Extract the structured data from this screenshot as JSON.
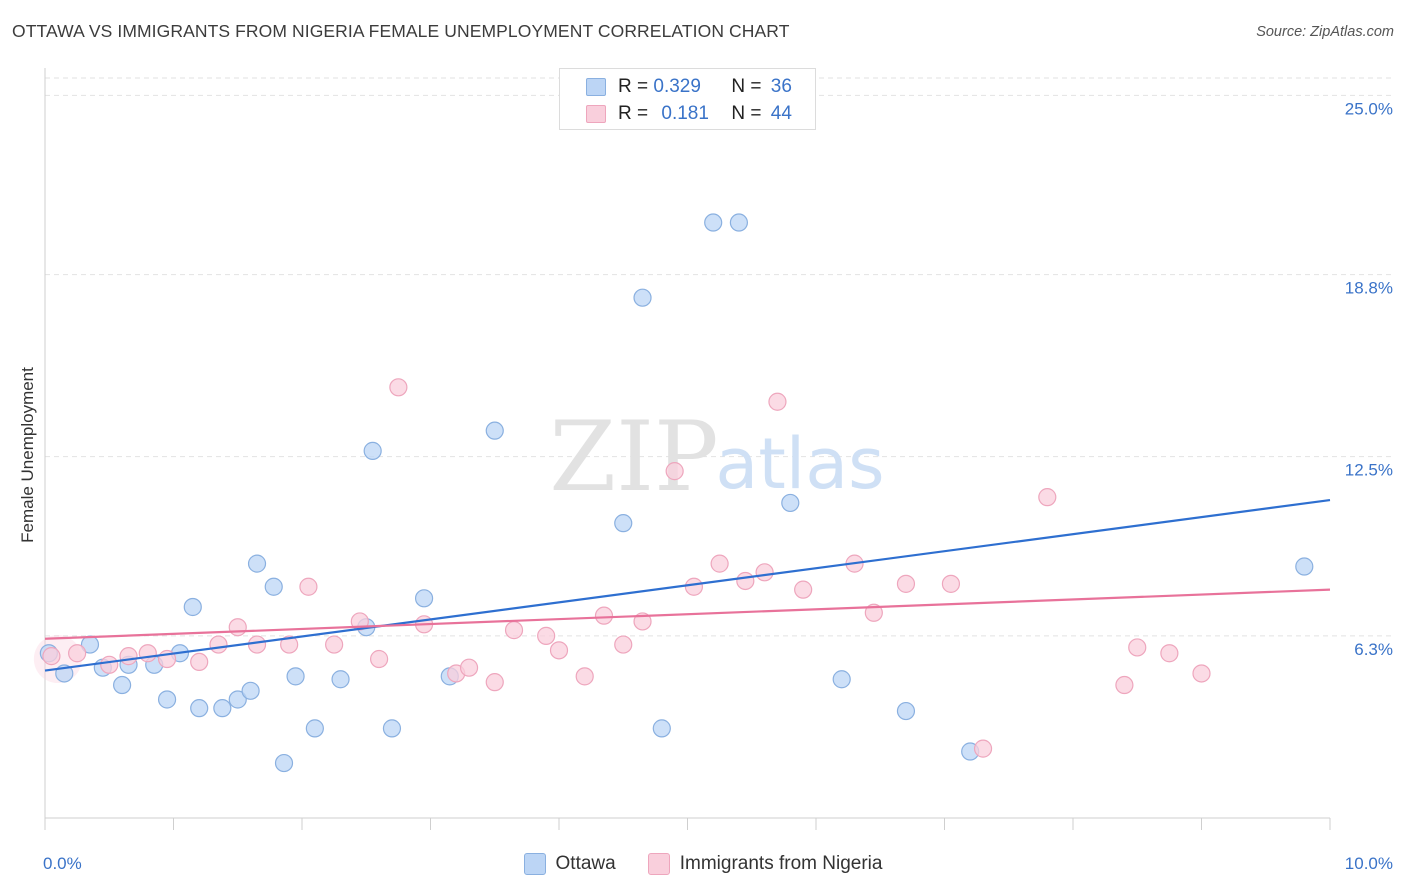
{
  "header": {
    "title": "OTTAWA VS IMMIGRANTS FROM NIGERIA FEMALE UNEMPLOYMENT CORRELATION CHART",
    "source": "Source: ZipAtlas.com"
  },
  "watermark": {
    "zip": "ZIP",
    "atlas": "atlas"
  },
  "colors": {
    "ottawa_fill": "#bcd5f5",
    "ottawa_stroke": "#8ab0e0",
    "ottawa_line": "#2e6fd0",
    "nigeria_fill": "#f9cfdc",
    "nigeria_stroke": "#eea6bd",
    "nigeria_line": "#e8729a",
    "axis_text": "#3a73c8",
    "grid": "#e2e2e2"
  },
  "legend_top": {
    "rows": [
      {
        "r_label": "R = ",
        "r_value": "0.329",
        "n_label": "N = ",
        "n_value": "36"
      },
      {
        "r_label": "R = ",
        "r_value": "0.181",
        "n_label": "N = ",
        "n_value": "44"
      }
    ]
  },
  "legend_bottom": {
    "items": [
      "Ottawa",
      "Immigrants from Nigeria"
    ]
  },
  "chart_data": {
    "type": "scatter",
    "title": "OTTAWA VS IMMIGRANTS FROM NIGERIA FEMALE UNEMPLOYMENT CORRELATION CHART",
    "xlabel": "",
    "ylabel": "Female Unemployment",
    "xlim": [
      0,
      10
    ],
    "ylim": [
      0,
      25.6
    ],
    "x_tick_labels": [
      {
        "value": 0,
        "label": "0.0%"
      },
      {
        "value": 10,
        "label": "10.0%"
      }
    ],
    "y_tick_labels": [
      {
        "value": 6.3,
        "label": "6.3%"
      },
      {
        "value": 12.5,
        "label": "12.5%"
      },
      {
        "value": 18.8,
        "label": "18.8%"
      },
      {
        "value": 25.0,
        "label": "25.0%"
      }
    ],
    "grid": true,
    "series": [
      {
        "name": "Ottawa",
        "r": 0.329,
        "n": 36,
        "trend": {
          "x": [
            0,
            10
          ],
          "y": [
            5.1,
            11.0
          ]
        },
        "points": [
          [
            0.03,
            5.7
          ],
          [
            0.15,
            5.0
          ],
          [
            0.35,
            6.0
          ],
          [
            0.45,
            5.2
          ],
          [
            0.6,
            4.6
          ],
          [
            0.65,
            5.3
          ],
          [
            0.85,
            5.3
          ],
          [
            0.95,
            4.1
          ],
          [
            1.05,
            5.7
          ],
          [
            1.15,
            7.3
          ],
          [
            1.2,
            3.8
          ],
          [
            1.38,
            3.8
          ],
          [
            1.5,
            4.1
          ],
          [
            1.6,
            4.4
          ],
          [
            1.65,
            8.8
          ],
          [
            1.78,
            8.0
          ],
          [
            1.86,
            1.9
          ],
          [
            1.95,
            4.9
          ],
          [
            2.1,
            3.1
          ],
          [
            2.3,
            4.8
          ],
          [
            2.5,
            6.6
          ],
          [
            2.55,
            12.7
          ],
          [
            2.7,
            3.1
          ],
          [
            2.95,
            7.6
          ],
          [
            3.15,
            4.9
          ],
          [
            3.5,
            13.4
          ],
          [
            4.5,
            10.2
          ],
          [
            4.65,
            18.0
          ],
          [
            4.8,
            3.1
          ],
          [
            5.2,
            20.6
          ],
          [
            5.4,
            20.6
          ],
          [
            5.8,
            10.9
          ],
          [
            6.2,
            4.8
          ],
          [
            6.7,
            3.7
          ],
          [
            7.2,
            2.3
          ],
          [
            9.8,
            8.7
          ]
        ]
      },
      {
        "name": "Immigrants from Nigeria",
        "r": 0.181,
        "n": 44,
        "trend": {
          "x": [
            0,
            10
          ],
          "y": [
            6.2,
            7.9
          ]
        },
        "points": [
          [
            0.05,
            5.6
          ],
          [
            0.25,
            5.7
          ],
          [
            0.5,
            5.3
          ],
          [
            0.65,
            5.6
          ],
          [
            0.8,
            5.7
          ],
          [
            0.95,
            5.5
          ],
          [
            1.2,
            5.4
          ],
          [
            1.35,
            6.0
          ],
          [
            1.5,
            6.6
          ],
          [
            1.65,
            6.0
          ],
          [
            1.9,
            6.0
          ],
          [
            2.05,
            8.0
          ],
          [
            2.25,
            6.0
          ],
          [
            2.45,
            6.8
          ],
          [
            2.6,
            5.5
          ],
          [
            2.75,
            14.9
          ],
          [
            2.95,
            6.7
          ],
          [
            3.2,
            5.0
          ],
          [
            3.3,
            5.2
          ],
          [
            3.5,
            4.7
          ],
          [
            3.65,
            6.5
          ],
          [
            3.9,
            6.3
          ],
          [
            4.0,
            5.8
          ],
          [
            4.2,
            4.9
          ],
          [
            4.35,
            7.0
          ],
          [
            4.5,
            6.0
          ],
          [
            4.65,
            6.8
          ],
          [
            4.9,
            12.0
          ],
          [
            5.05,
            8.0
          ],
          [
            5.25,
            8.8
          ],
          [
            5.45,
            8.2
          ],
          [
            5.6,
            8.5
          ],
          [
            5.7,
            14.4
          ],
          [
            5.9,
            7.9
          ],
          [
            6.3,
            8.8
          ],
          [
            6.45,
            7.1
          ],
          [
            6.7,
            8.1
          ],
          [
            7.05,
            8.1
          ],
          [
            7.3,
            2.4
          ],
          [
            7.8,
            11.1
          ],
          [
            8.4,
            4.6
          ],
          [
            8.5,
            5.9
          ],
          [
            8.75,
            5.7
          ],
          [
            9.0,
            5.0
          ]
        ]
      }
    ]
  }
}
